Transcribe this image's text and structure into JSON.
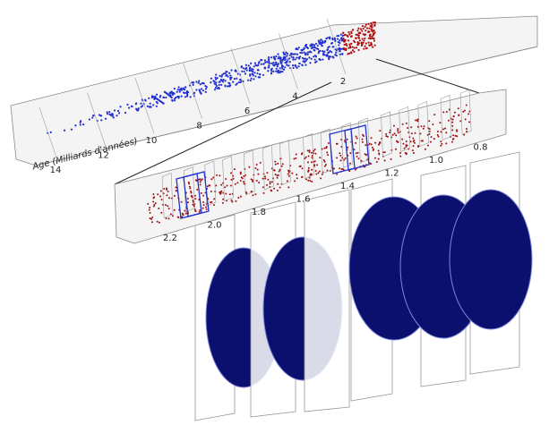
{
  "upper_axis": {
    "label": "Age (Milliards d'années)",
    "ticks": [
      "14",
      "12",
      "10",
      "8",
      "6",
      "4",
      "2"
    ]
  },
  "lower_axis": {
    "ticks": [
      "2.2",
      "2.0",
      "1.8",
      "1.6",
      "1.4",
      "1.2",
      "1.0",
      "0.8"
    ]
  }
}
